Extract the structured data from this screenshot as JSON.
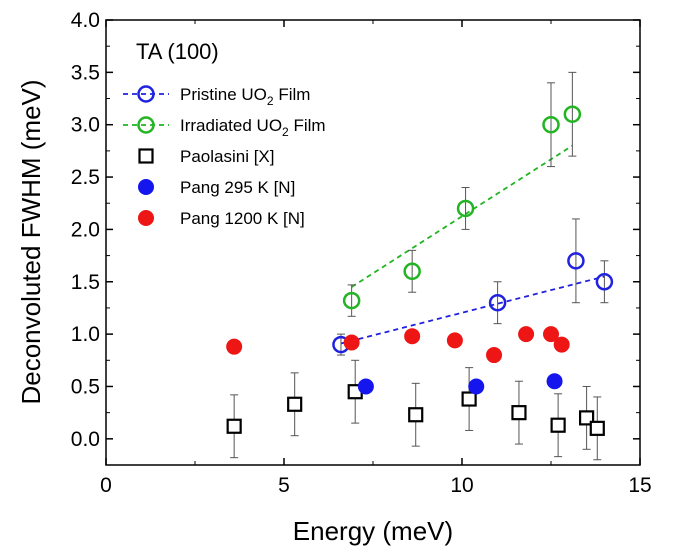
{
  "chart_data": {
    "type": "scatter",
    "title": "",
    "annotation": "TA (100)",
    "xlabel": "Energy (meV)",
    "ylabel": "Deconvoluted FWHM (meV)",
    "xlim": [
      0,
      15
    ],
    "ylim": [
      -0.25,
      4.0
    ],
    "xticks": [
      0,
      5,
      10,
      15
    ],
    "yticks": [
      0.0,
      0.5,
      1.0,
      1.5,
      2.0,
      2.5,
      3.0,
      3.5,
      4.0
    ],
    "xtick_labels": [
      "0",
      "5",
      "10",
      "15"
    ],
    "ytick_labels": [
      "0.0",
      "0.5",
      "1.0",
      "1.5",
      "2.0",
      "2.5",
      "3.0",
      "3.5",
      "4.0"
    ],
    "legend_position": "top-left",
    "series": [
      {
        "name": "Pristine UO2 Film",
        "legend_label": {
          "pre": "Pristine UO",
          "sub": "2",
          "post": " Film"
        },
        "marker": "open-circle",
        "color": "#2121e0",
        "fit_line": true,
        "x": [
          6.6,
          11.0,
          13.2,
          14.0
        ],
        "y": [
          0.9,
          1.3,
          1.7,
          1.5
        ],
        "yerr": [
          0.1,
          0.2,
          0.4,
          0.2
        ],
        "fit": {
          "x": [
            6.6,
            14.0
          ],
          "y": [
            0.91,
            1.55
          ]
        }
      },
      {
        "name": "Irradiated UO2 Film",
        "legend_label": {
          "pre": "Irradiated UO",
          "sub": "2",
          "post": " Film"
        },
        "marker": "open-circle",
        "color": "#22b422",
        "fit_line": true,
        "x": [
          6.9,
          8.6,
          10.1,
          12.5,
          13.1
        ],
        "y": [
          1.32,
          1.6,
          2.2,
          3.0,
          3.1
        ],
        "yerr": [
          0.15,
          0.2,
          0.2,
          0.4,
          0.4
        ],
        "fit": {
          "x": [
            6.9,
            13.1
          ],
          "y": [
            1.45,
            2.8
          ]
        }
      },
      {
        "name": "Paolasini [X]",
        "legend_label": {
          "pre": "Paolasini [X]",
          "sub": "",
          "post": ""
        },
        "marker": "open-square",
        "color": "#000000",
        "fit_line": false,
        "x": [
          3.6,
          5.3,
          7.0,
          8.7,
          10.2,
          11.6,
          12.7,
          13.5,
          13.8
        ],
        "y": [
          0.12,
          0.33,
          0.45,
          0.23,
          0.38,
          0.25,
          0.13,
          0.2,
          0.1
        ],
        "yerr": [
          0.3,
          0.3,
          0.3,
          0.3,
          0.3,
          0.3,
          0.3,
          0.3,
          0.3
        ]
      },
      {
        "name": "Pang 295 K [N]",
        "legend_label": {
          "pre": "Pang 295 K [N]",
          "sub": "",
          "post": ""
        },
        "marker": "filled-circle",
        "color": "#1515ee",
        "fit_line": false,
        "x": [
          7.3,
          10.4,
          12.6
        ],
        "y": [
          0.5,
          0.5,
          0.55
        ]
      },
      {
        "name": "Pang 1200 K [N]",
        "legend_label": {
          "pre": "Pang 1200 K [N]",
          "sub": "",
          "post": ""
        },
        "marker": "filled-circle",
        "color": "#ee1515",
        "fit_line": false,
        "x": [
          3.6,
          6.9,
          8.6,
          9.8,
          10.9,
          11.8,
          12.5,
          12.8
        ],
        "y": [
          0.88,
          0.92,
          0.98,
          0.94,
          0.8,
          1.0,
          1.0,
          0.9
        ]
      }
    ]
  }
}
